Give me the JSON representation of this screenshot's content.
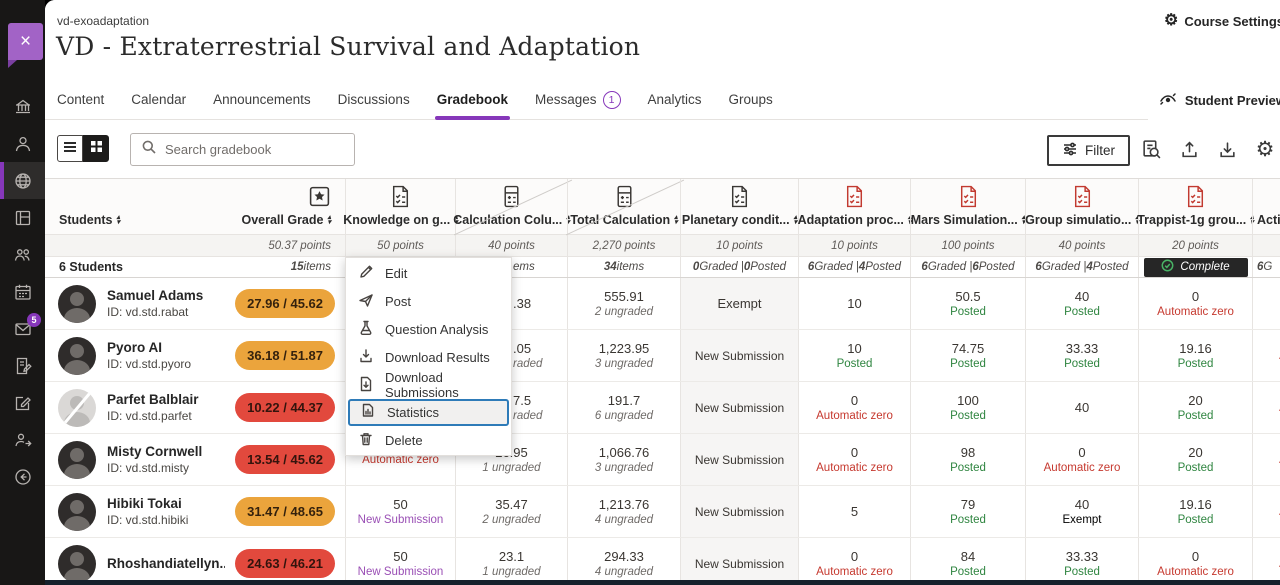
{
  "colors": {
    "accent_purple": "#8637BA",
    "pill_orange": "#EBA43C",
    "pill_red": "#E2493D",
    "posted_green": "#2F8540",
    "new_submission_purple": "#9A4FB5",
    "auto_zero_red": "#C6392F"
  },
  "chrome": {
    "close_label": "×"
  },
  "sidebar": {
    "badge_count": "5"
  },
  "header": {
    "course_id": "vd-exoadaptation",
    "title": "VD - Extraterrestrial Survival and Adaptation",
    "course_settings": "Course Settings",
    "student_preview": "Student Preview"
  },
  "nav": {
    "tabs": [
      {
        "label": "Content"
      },
      {
        "label": "Calendar"
      },
      {
        "label": "Announcements"
      },
      {
        "label": "Discussions"
      },
      {
        "label": "Gradebook",
        "active": true
      },
      {
        "label": "Messages",
        "badge": "1"
      },
      {
        "label": "Analytics"
      },
      {
        "label": "Groups"
      }
    ]
  },
  "toolbar": {
    "search_placeholder": "Search gradebook",
    "filter_label": "Filter"
  },
  "menu": {
    "items": [
      {
        "label": "Edit",
        "icon": "pencil-icon"
      },
      {
        "label": "Post",
        "icon": "send-icon"
      },
      {
        "label": "Question Analysis",
        "icon": "flask-icon"
      },
      {
        "label": "Download Results",
        "icon": "download-icon"
      },
      {
        "label": "Download Submissions",
        "icon": "file-download-icon"
      },
      {
        "label": "Statistics",
        "icon": "statistics-icon",
        "highlighted": true
      },
      {
        "label": "Delete",
        "icon": "trash-icon"
      }
    ]
  },
  "table": {
    "columns": [
      {
        "key": "students",
        "label": "Students",
        "status": "6 Students"
      },
      {
        "key": "overall",
        "label": "Overall Grade",
        "icon": "medal-icon",
        "points": "50.37 points",
        "status": "15 items"
      },
      {
        "key": "knowledge",
        "label": "Knowledge on g...",
        "icon": "quiz-icon",
        "points": "50 points",
        "status": ""
      },
      {
        "key": "calc",
        "label": "Calculation Colu...",
        "icon": "calculator-icon",
        "points": "40 points",
        "status": "ems"
      },
      {
        "key": "total",
        "label": "Total Calculation",
        "icon": "calculator-icon",
        "points": "2,270 points",
        "status": "34 items"
      },
      {
        "key": "planetary",
        "label": "Planetary condit...",
        "icon": "quiz-icon",
        "points": "10 points",
        "status": "0 Graded | 0 Posted"
      },
      {
        "key": "adaptation",
        "label": "Adaptation proc...",
        "icon": "quiz-icon-red",
        "points": "10 points",
        "status": "6 Graded | 4 Posted"
      },
      {
        "key": "mars",
        "label": "Mars Simulation...",
        "icon": "quiz-icon-red",
        "points": "100 points",
        "status": "6 Graded | 6 Posted"
      },
      {
        "key": "group",
        "label": "Group simulatio...",
        "icon": "quiz-icon-red",
        "points": "40 points",
        "status": "6 Graded | 4 Posted"
      },
      {
        "key": "trappist",
        "label": "Trappist-1g grou...",
        "icon": "quiz-icon-red",
        "points": "20 points",
        "status": "Complete",
        "complete": true
      },
      {
        "key": "action",
        "label": "Acti...",
        "points": "",
        "status": "6 G"
      }
    ],
    "rows": [
      {
        "name": "Samuel Adams",
        "id": "ID: vd.std.rabat",
        "overall": {
          "text": "27.96 / 45.62",
          "color": "orange"
        },
        "cells": {
          "knowledge": {},
          "calc": {
            "m": ".38",
            "f": 1
          },
          "total": {
            "m": "555.91",
            "s": "2 ungraded"
          },
          "planetary": {
            "m": "Exempt"
          },
          "adaptation": {
            "m": "10"
          },
          "mars": {
            "m": "50.5",
            "s": "Posted"
          },
          "group": {
            "m": "40",
            "s": "Posted"
          },
          "trappist": {
            "m": "0",
            "s": "Automatic zero"
          },
          "action": {}
        }
      },
      {
        "name": "Pyoro AI",
        "id": "ID: vd.std.pyoro",
        "overall": {
          "text": "36.18 / 51.87",
          "color": "orange"
        },
        "cells": {
          "knowledge": {},
          "calc": {
            "m": ".05",
            "s": "raded",
            "f": 1
          },
          "total": {
            "m": "1,223.95",
            "s": "3 ungraded"
          },
          "planetary": {
            "m": "New Submission"
          },
          "adaptation": {
            "m": "10",
            "s": "Posted"
          },
          "mars": {
            "m": "74.75",
            "s": "Posted"
          },
          "group": {
            "m": "33.33",
            "s": "Posted"
          },
          "trappist": {
            "m": "19.16",
            "s": "Posted"
          },
          "action": {
            "s": "Automatic zero"
          }
        }
      },
      {
        "name": "Parfet Balblair",
        "id": "ID: vd.std.parfet",
        "disabled": true,
        "overall": {
          "text": "10.22 / 44.37",
          "color": "red"
        },
        "cells": {
          "knowledge": {},
          "calc": {
            "m": "7.5",
            "s": "raded",
            "f": 1
          },
          "total": {
            "m": "191.7",
            "s": "6 ungraded"
          },
          "planetary": {
            "m": "New Submission"
          },
          "adaptation": {
            "m": "0",
            "s": "Automatic zero"
          },
          "mars": {
            "m": "100",
            "s": "Posted"
          },
          "group": {
            "m": "40"
          },
          "trappist": {
            "m": "20",
            "s": "Posted"
          },
          "action": {
            "s": "Automatic zero"
          }
        }
      },
      {
        "name": "Misty Cornwell",
        "id": "ID: vd.std.misty",
        "overall": {
          "text": "13.54 / 45.62",
          "color": "red"
        },
        "cells": {
          "knowledge": {
            "s": "Automatic zero"
          },
          "calc": {
            "m": "26.95",
            "s": "1 ungraded"
          },
          "total": {
            "m": "1,066.76",
            "s": "3 ungraded"
          },
          "planetary": {
            "m": "New Submission"
          },
          "adaptation": {
            "m": "0",
            "s": "Automatic zero"
          },
          "mars": {
            "m": "98",
            "s": "Posted"
          },
          "group": {
            "m": "0",
            "s": "Automatic zero"
          },
          "trappist": {
            "m": "20",
            "s": "Posted"
          },
          "action": {
            "s": "Automatic zero"
          }
        }
      },
      {
        "name": "Hibiki Tokai",
        "id": "ID: vd.std.hibiki",
        "overall": {
          "text": "31.47 / 48.65",
          "color": "orange"
        },
        "cells": {
          "knowledge": {
            "m": "50",
            "s": "New Submission"
          },
          "calc": {
            "m": "35.47",
            "s": "2 ungraded"
          },
          "total": {
            "m": "1,213.76",
            "s": "4 ungraded"
          },
          "planetary": {
            "m": "New Submission"
          },
          "adaptation": {
            "m": "5"
          },
          "mars": {
            "m": "79",
            "s": "Posted"
          },
          "group": {
            "m": "40",
            "s": "Exempt"
          },
          "trappist": {
            "m": "19.16",
            "s": "Posted"
          },
          "action": {
            "s": "Automatic zero"
          }
        }
      },
      {
        "name": "Rhoshandiatellyn...",
        "id": "",
        "overall": {
          "text": "24.63 / 46.21",
          "color": "red"
        },
        "cells": {
          "knowledge": {
            "m": "50",
            "s": "New Submission"
          },
          "calc": {
            "m": "23.1",
            "s": "1 ungraded"
          },
          "total": {
            "m": "294.33",
            "s": "4 ungraded"
          },
          "planetary": {
            "m": "New Submission"
          },
          "adaptation": {
            "m": "0",
            "s": "Automatic zero"
          },
          "mars": {
            "m": "84",
            "s": "Posted"
          },
          "group": {
            "m": "33.33",
            "s": "Posted"
          },
          "trappist": {
            "m": "0",
            "s": "Automatic zero"
          },
          "action": {
            "s": "Automatic zero"
          }
        }
      }
    ]
  }
}
